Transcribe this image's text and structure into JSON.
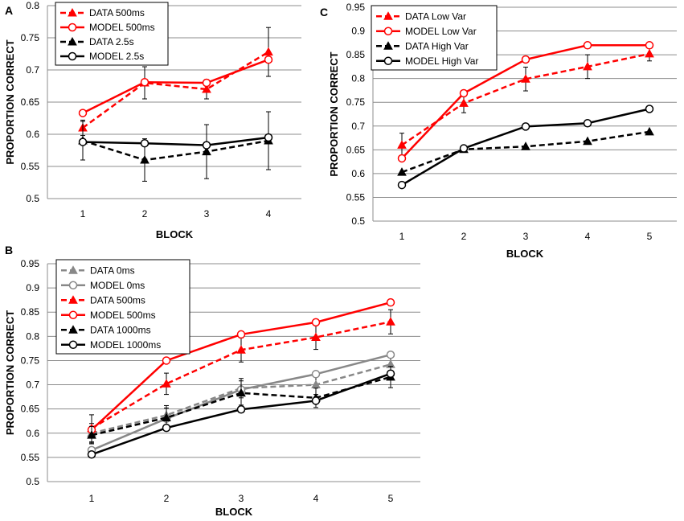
{
  "chart_data": [
    {
      "panel": "A",
      "type": "line",
      "xlabel": "BLOCK",
      "ylabel": "PROPORTION CORRECT",
      "categories": [
        "1",
        "2",
        "3",
        "4"
      ],
      "ylim": [
        0.5,
        0.8
      ],
      "yticks": [
        "0.5",
        "0.55",
        "0.6",
        "0.65",
        "0.7",
        "0.75",
        "0.8"
      ],
      "grid": true,
      "legend_position": "top-left",
      "series": [
        {
          "name": "DATA 500ms",
          "color": "#ff0000",
          "dash": true,
          "marker": "triangle",
          "values": [
            0.61,
            0.68,
            0.67,
            0.728
          ],
          "errors": [
            0.012,
            0.025,
            0.015,
            0.038
          ]
        },
        {
          "name": "MODEL 500ms",
          "color": "#ff0000",
          "dash": false,
          "marker": "circle",
          "values": [
            0.633,
            0.681,
            0.68,
            0.716
          ],
          "errors": null
        },
        {
          "name": "DATA 2.5s",
          "color": "#000000",
          "dash": true,
          "marker": "triangle",
          "values": [
            0.59,
            0.56,
            0.573,
            0.59
          ],
          "errors": [
            0.03,
            0.033,
            0.042,
            0.045
          ]
        },
        {
          "name": "MODEL 2.5s",
          "color": "#000000",
          "dash": false,
          "marker": "circle",
          "values": [
            0.588,
            0.586,
            0.583,
            0.595
          ],
          "errors": null
        }
      ]
    },
    {
      "panel": "B",
      "type": "line",
      "xlabel": "BLOCK",
      "ylabel": "PROPORTION CORRECT",
      "categories": [
        "1",
        "2",
        "3",
        "4",
        "5"
      ],
      "ylim": [
        0.5,
        0.95
      ],
      "yticks": [
        "0.5",
        "0.55",
        "0.6",
        "0.65",
        "0.7",
        "0.75",
        "0.8",
        "0.85",
        "0.9",
        "0.95"
      ],
      "grid": true,
      "legend_position": "top-left",
      "series": [
        {
          "name": "DATA 0ms",
          "color": "#888888",
          "dash": true,
          "marker": "triangle",
          "values": [
            0.6,
            0.637,
            0.693,
            0.7,
            0.742
          ],
          "errors": [
            0.02,
            0.02,
            0.02,
            0.02,
            0.02
          ]
        },
        {
          "name": "MODEL 0ms",
          "color": "#888888",
          "dash": false,
          "marker": "circle",
          "values": [
            0.565,
            0.63,
            0.69,
            0.722,
            0.762
          ],
          "errors": null
        },
        {
          "name": "DATA 500ms",
          "color": "#ff0000",
          "dash": true,
          "marker": "triangle",
          "values": [
            0.61,
            0.702,
            0.772,
            0.798,
            0.83
          ],
          "errors": [
            0.028,
            0.022,
            0.025,
            0.025,
            0.025
          ]
        },
        {
          "name": "MODEL 500ms",
          "color": "#ff0000",
          "dash": false,
          "marker": "circle",
          "values": [
            0.607,
            0.75,
            0.804,
            0.829,
            0.87
          ],
          "errors": null
        },
        {
          "name": "DATA 1000ms",
          "color": "#000000",
          "dash": true,
          "marker": "triangle",
          "values": [
            0.596,
            0.632,
            0.683,
            0.673,
            0.716
          ],
          "errors": [
            0.018,
            0.02,
            0.025,
            0.02,
            0.022
          ]
        },
        {
          "name": "MODEL 1000ms",
          "color": "#000000",
          "dash": false,
          "marker": "circle",
          "values": [
            0.556,
            0.611,
            0.649,
            0.667,
            0.723
          ],
          "errors": null
        }
      ]
    },
    {
      "panel": "C",
      "type": "line",
      "xlabel": "BLOCK",
      "ylabel": "PROPORTION CORRECT",
      "categories": [
        "1",
        "2",
        "3",
        "4",
        "5"
      ],
      "ylim": [
        0.5,
        0.95
      ],
      "yticks": [
        "0.5",
        "0.55",
        "0.6",
        "0.65",
        "0.7",
        "0.75",
        "0.8",
        "0.85",
        "0.9",
        "0.95"
      ],
      "grid": true,
      "legend_position": "top-left",
      "series": [
        {
          "name": "DATA Low Var",
          "color": "#ff0000",
          "dash": true,
          "marker": "triangle",
          "values": [
            0.66,
            0.748,
            0.799,
            0.825,
            0.852
          ],
          "errors": [
            0.025,
            0.02,
            0.025,
            0.025,
            0.015
          ]
        },
        {
          "name": "MODEL Low Var",
          "color": "#ff0000",
          "dash": false,
          "marker": "circle",
          "values": [
            0.632,
            0.769,
            0.84,
            0.87,
            0.87
          ],
          "errors": null
        },
        {
          "name": "DATA High Var",
          "color": "#000000",
          "dash": true,
          "marker": "triangle",
          "values": [
            0.603,
            0.651,
            0.657,
            0.668,
            0.688
          ],
          "errors": null
        },
        {
          "name": "MODEL High Var",
          "color": "#000000",
          "dash": false,
          "marker": "circle",
          "values": [
            0.576,
            0.653,
            0.699,
            0.706,
            0.736
          ],
          "errors": null
        }
      ]
    }
  ]
}
